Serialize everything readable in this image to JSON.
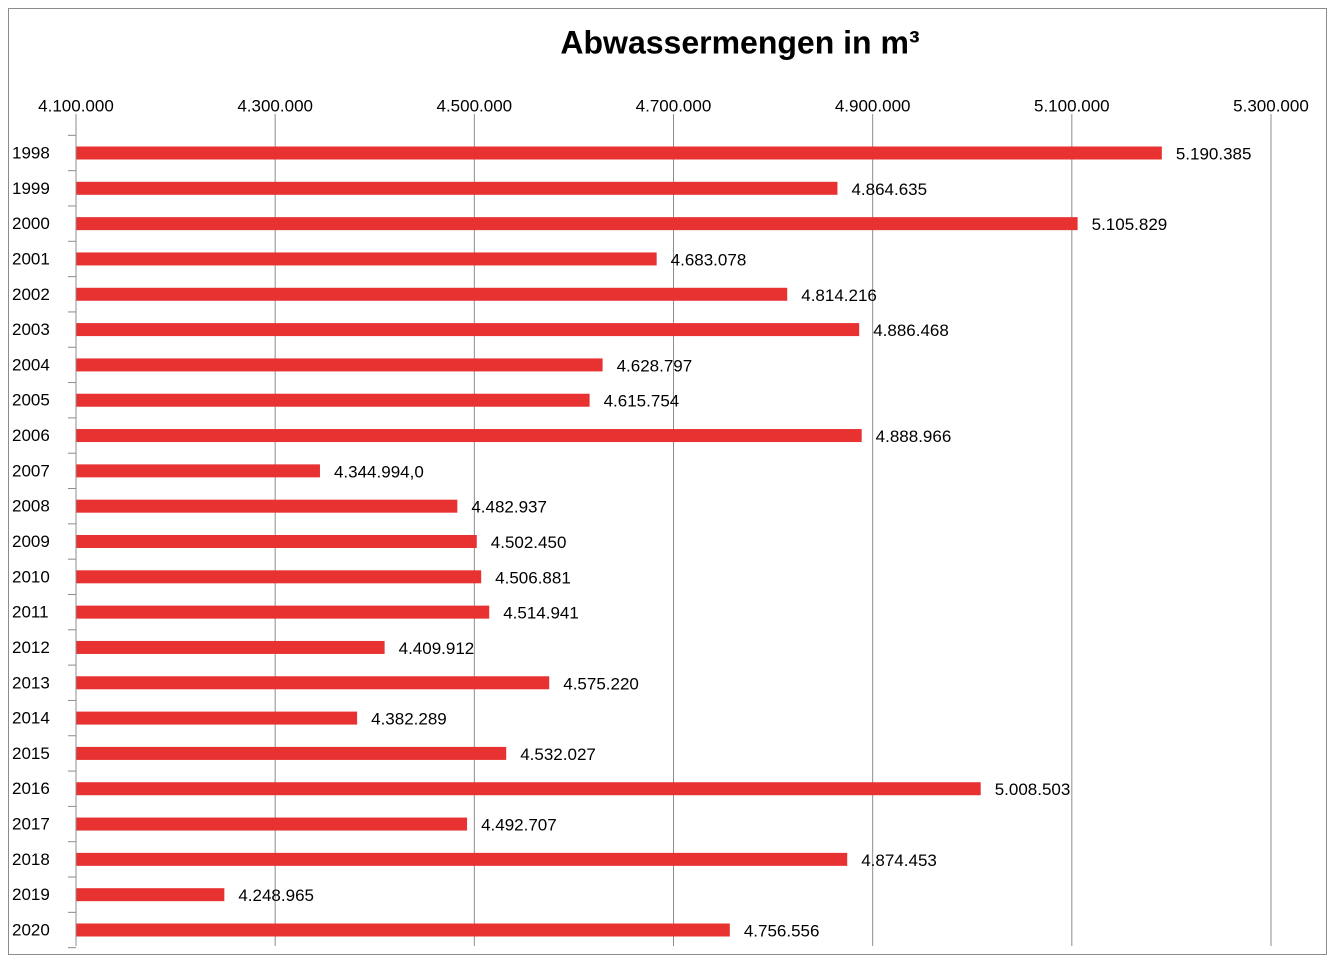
{
  "chart_data": {
    "type": "barh",
    "title": "Abwassermengen in m³",
    "categories": [
      "1998",
      "1999",
      "2000",
      "2001",
      "2002",
      "2003",
      "2004",
      "2005",
      "2006",
      "2007",
      "2008",
      "2009",
      "2010",
      "2011",
      "2012",
      "2013",
      "2014",
      "2015",
      "2016",
      "2017",
      "2018",
      "2019",
      "2020"
    ],
    "values": [
      5190385,
      4864635,
      5105829,
      4683078,
      4814216,
      4886468,
      4628797,
      4615754,
      4888966,
      4344994.0,
      4482937,
      4502450,
      4506881,
      4514941,
      4409912,
      4575220,
      4382289,
      4532027,
      5008503,
      4492707,
      4874453,
      4248965,
      4756556
    ],
    "value_labels": [
      "5.190.385",
      "4.864.635",
      "5.105.829",
      "4.683.078",
      "4.814.216",
      "4.886.468",
      "4.628.797",
      "4.615.754",
      "4.888.966",
      "4.344.994,0",
      "4.482.937",
      "4.502.450",
      "4.506.881",
      "4.514.941",
      "4.409.912",
      "4.575.220",
      "4.382.289",
      "4.532.027",
      "5.008.503",
      "4.492.707",
      "4.874.453",
      "4.248.965",
      "4.756.556"
    ],
    "color": "#e83232",
    "xlim": [
      4100000,
      5300000
    ],
    "xticks": [
      {
        "value": 4100000,
        "label": "4.100.000"
      },
      {
        "value": 4300000,
        "label": "4.300.000"
      },
      {
        "value": 4500000,
        "label": "4.500.000"
      },
      {
        "value": 4700000,
        "label": "4.700.000"
      },
      {
        "value": 4900000,
        "label": "4.900.000"
      },
      {
        "value": 5100000,
        "label": "5.100.000"
      },
      {
        "value": 5300000,
        "label": "5.300.000"
      }
    ],
    "grid": true
  }
}
